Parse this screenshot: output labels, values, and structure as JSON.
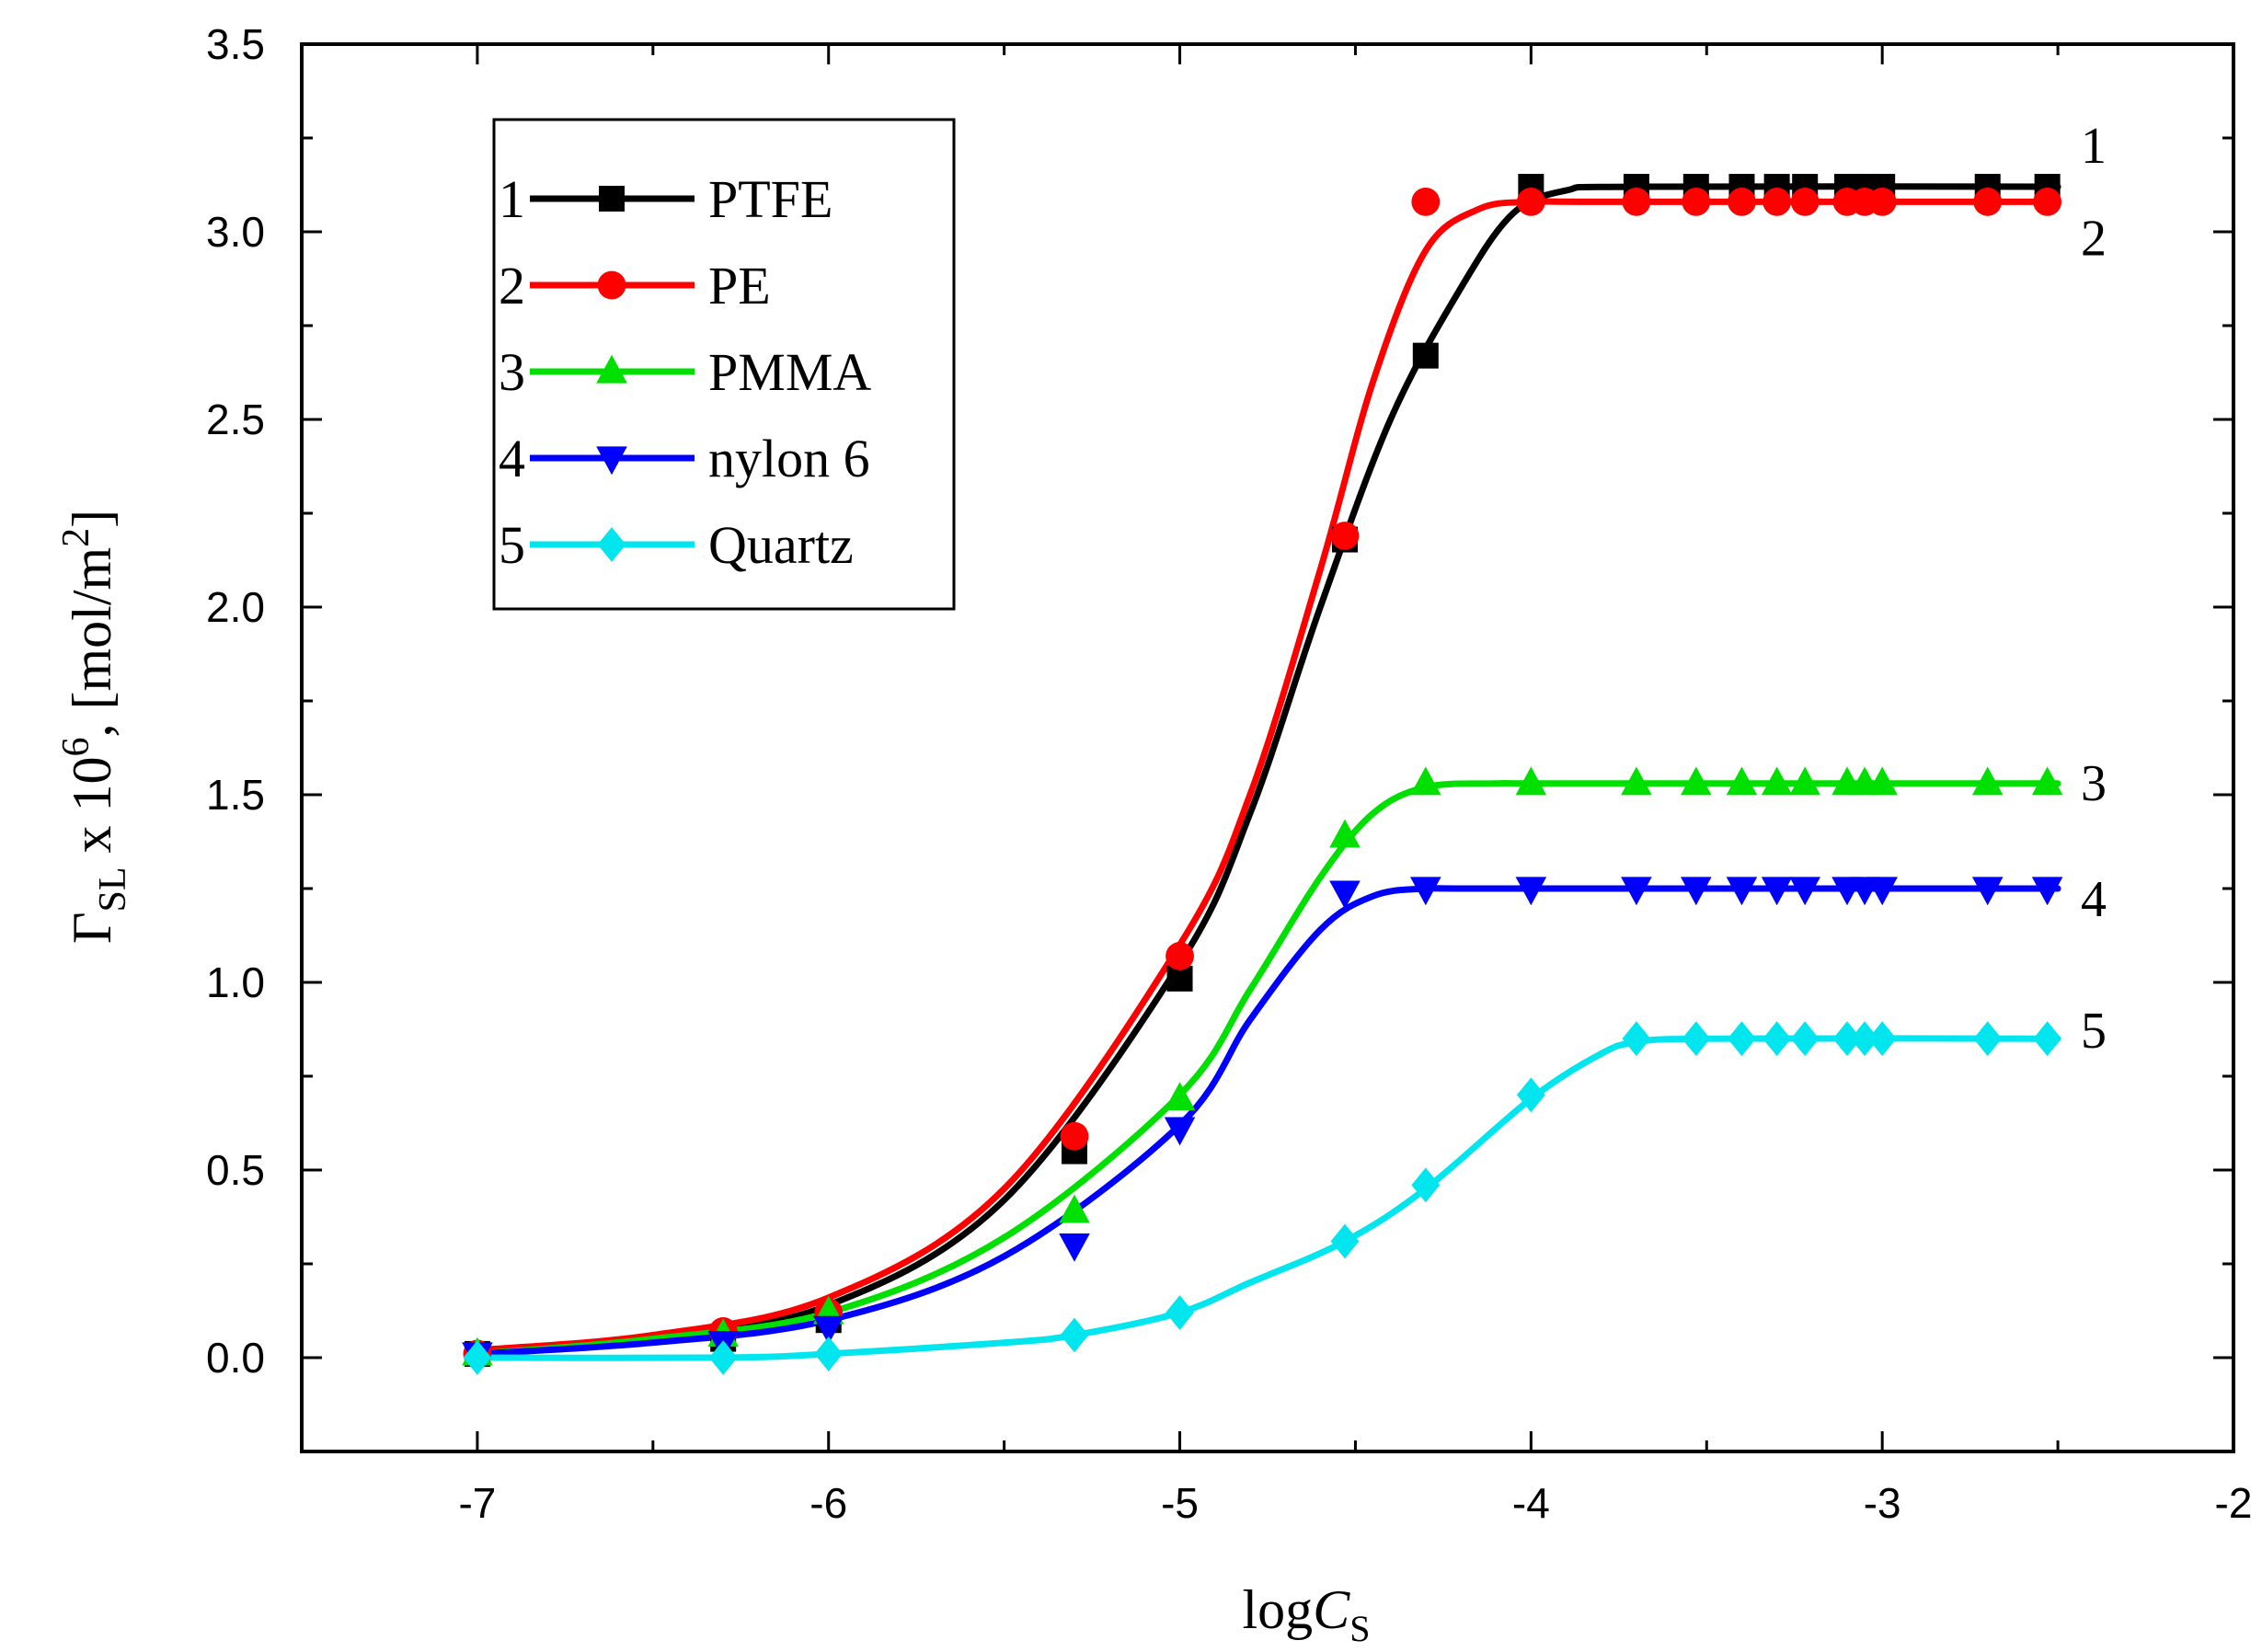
{
  "chart_data": {
    "type": "line",
    "title": "",
    "xlabel": {
      "base": "log",
      "var": "C",
      "sub": "S"
    },
    "ylabel": {
      "sym": "Γ",
      "sub": "SL",
      "mid": " x 10",
      "exp": "6",
      "unit": ", [mol/m",
      "unit_exp": "2",
      "close": "]"
    },
    "xlim": [
      -7.5,
      -2
    ],
    "ylim": [
      -0.25,
      3.5
    ],
    "xticks": [
      -7,
      -6,
      -5,
      -4,
      -3,
      -2
    ],
    "xtick_labels": [
      "-7",
      "-6",
      "-5",
      "-4",
      "-3",
      "-2"
    ],
    "yticks": [
      0.0,
      0.5,
      1.0,
      1.5,
      2.0,
      2.5,
      3.0,
      3.5
    ],
    "ytick_labels": [
      "0.0",
      "0.5",
      "1.0",
      "1.5",
      "2.0",
      "2.5",
      "3.0",
      "3.5"
    ],
    "grid": false,
    "legend_position": "top-left",
    "series": [
      {
        "id": "1",
        "name": "PTFE",
        "color": "#000000",
        "marker": "square",
        "end_label": "1",
        "x": [
          -7,
          -6.3,
          -6,
          -5.3,
          -5,
          -4.53,
          -4.3,
          -4,
          -3.7,
          -3.53,
          -3.4,
          -3.3,
          -3.22,
          -3.1,
          -3.05,
          -3.0,
          -2.7,
          -2.53
        ],
        "y": [
          0.01,
          0.05,
          0.1,
          0.55,
          1.01,
          2.18,
          2.67,
          3.12,
          3.12,
          3.12,
          3.12,
          3.12,
          3.12,
          3.12,
          3.12,
          3.12,
          3.12,
          3.12
        ],
        "curve_x": [
          -7,
          -6.5,
          -6,
          -5.5,
          -5,
          -4.8,
          -4.6,
          -4.4,
          -4.2,
          -4.05,
          -3.9,
          -3.7,
          -2.5
        ],
        "curve_y": [
          0.02,
          0.05,
          0.14,
          0.42,
          1.05,
          1.45,
          2.0,
          2.5,
          2.85,
          3.05,
          3.11,
          3.12,
          3.12
        ]
      },
      {
        "id": "2",
        "name": "PE",
        "color": "#ff0000",
        "marker": "circle",
        "end_label": "2",
        "x": [
          -7,
          -6.3,
          -6,
          -5.3,
          -5,
          -4.53,
          -4.3,
          -4,
          -3.7,
          -3.53,
          -3.4,
          -3.3,
          -3.22,
          -3.1,
          -3.05,
          -3.0,
          -2.7,
          -2.53
        ],
        "y": [
          0.01,
          0.07,
          0.12,
          0.59,
          1.07,
          2.19,
          3.08,
          3.08,
          3.08,
          3.08,
          3.08,
          3.08,
          3.08,
          3.08,
          3.08,
          3.08,
          3.08,
          3.08
        ],
        "curve_x": [
          -7,
          -6.5,
          -6,
          -5.5,
          -5,
          -4.8,
          -4.6,
          -4.45,
          -4.3,
          -4.15,
          -4.0,
          -3.8,
          -2.5
        ],
        "curve_y": [
          0.02,
          0.06,
          0.16,
          0.45,
          1.1,
          1.5,
          2.1,
          2.6,
          2.95,
          3.06,
          3.08,
          3.08,
          3.08
        ]
      },
      {
        "id": "3",
        "name": "PMMA",
        "color": "#00e000",
        "marker": "triangle-up",
        "end_label": "3",
        "x": [
          -7,
          -6.3,
          -6,
          -5.3,
          -5,
          -4.53,
          -4.3,
          -4,
          -3.7,
          -3.53,
          -3.4,
          -3.3,
          -3.22,
          -3.1,
          -3.05,
          -3.0,
          -2.7,
          -2.53
        ],
        "y": [
          0.01,
          0.06,
          0.12,
          0.39,
          0.69,
          1.39,
          1.53,
          1.53,
          1.53,
          1.53,
          1.53,
          1.53,
          1.53,
          1.53,
          1.53,
          1.53,
          1.53,
          1.53
        ],
        "curve_x": [
          -7,
          -6.5,
          -6,
          -5.5,
          -5,
          -4.8,
          -4.6,
          -4.45,
          -4.3,
          -4.1,
          -3.9,
          -2.5
        ],
        "curve_y": [
          0.01,
          0.05,
          0.12,
          0.32,
          0.7,
          0.98,
          1.28,
          1.45,
          1.52,
          1.53,
          1.53,
          1.53
        ]
      },
      {
        "id": "4",
        "name": "nylon 6",
        "color": "#0000ff",
        "marker": "triangle-down",
        "end_label": "4",
        "x": [
          -7,
          -6.3,
          -6,
          -5.3,
          -5,
          -4.53,
          -4.3,
          -4,
          -3.7,
          -3.53,
          -3.4,
          -3.3,
          -3.22,
          -3.1,
          -3.05,
          -3.0,
          -2.7,
          -2.53
        ],
        "y": [
          0.01,
          0.04,
          0.08,
          0.3,
          0.61,
          1.24,
          1.25,
          1.25,
          1.25,
          1.25,
          1.25,
          1.25,
          1.25,
          1.25,
          1.25,
          1.25,
          1.25,
          1.25
        ],
        "curve_x": [
          -7,
          -6.5,
          -6,
          -5.5,
          -5,
          -4.8,
          -4.6,
          -4.45,
          -4.3,
          -4.1,
          -2.5
        ],
        "curve_y": [
          0.01,
          0.04,
          0.1,
          0.27,
          0.62,
          0.9,
          1.14,
          1.23,
          1.25,
          1.25,
          1.25
        ]
      },
      {
        "id": "5",
        "name": "Quartz",
        "color": "#00e5ee",
        "marker": "diamond",
        "end_label": "5",
        "x": [
          -7,
          -6.3,
          -6,
          -5.3,
          -5,
          -4.53,
          -4.3,
          -4,
          -3.7,
          -3.53,
          -3.4,
          -3.3,
          -3.22,
          -3.1,
          -3.05,
          -3.0,
          -2.7,
          -2.53
        ],
        "y": [
          0.0,
          0.0,
          0.01,
          0.06,
          0.12,
          0.31,
          0.46,
          0.7,
          0.85,
          0.85,
          0.85,
          0.85,
          0.85,
          0.85,
          0.85,
          0.85,
          0.85,
          0.85
        ],
        "curve_x": [
          -7,
          -6.3,
          -6,
          -5.5,
          -5.3,
          -5,
          -4.8,
          -4.53,
          -4.3,
          -4,
          -3.8,
          -3.7,
          -3.5,
          -2.5
        ],
        "curve_y": [
          0.0,
          0.0,
          0.01,
          0.04,
          0.06,
          0.12,
          0.2,
          0.31,
          0.45,
          0.69,
          0.81,
          0.84,
          0.85,
          0.85
        ]
      }
    ]
  }
}
